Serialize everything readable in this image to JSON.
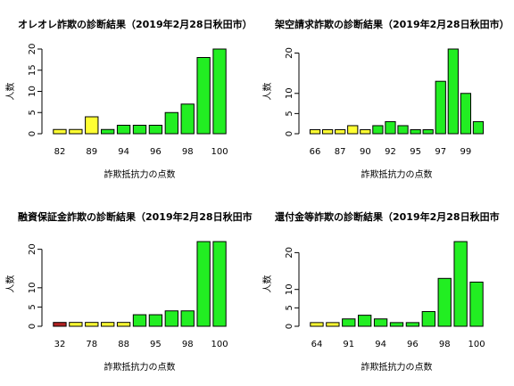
{
  "chart_data": [
    {
      "type": "bar",
      "title": "オレオレ詐欺の診断結果（2019年2月28日秋田市）",
      "x_label": "詐欺抵抗力の点数",
      "y_label": "人数",
      "categories": [
        "82",
        null,
        "89",
        null,
        "94",
        null,
        "96",
        null,
        "98",
        null,
        "100"
      ],
      "values": [
        1,
        1,
        4,
        1,
        2,
        2,
        2,
        5,
        7,
        18,
        20
      ],
      "colors": [
        "#ffff33",
        "#ffff33",
        "#ffff33",
        "#22ee22",
        "#22ee22",
        "#22ee22",
        "#22ee22",
        "#22ee22",
        "#22ee22",
        "#22ee22",
        "#22ee22"
      ],
      "ylim": [
        0,
        20
      ],
      "yticks": [
        0,
        5,
        10,
        15,
        20
      ]
    },
    {
      "type": "bar",
      "title": "架空請求詐欺の診断結果（2019年2月28日秋田市）",
      "x_label": "詐欺抵抗力の点数",
      "y_label": "人数",
      "categories": [
        "66",
        null,
        "87",
        null,
        "90",
        null,
        "92",
        null,
        "95",
        null,
        "97",
        null,
        "99",
        null
      ],
      "values": [
        1,
        1,
        1,
        2,
        1,
        2,
        3,
        2,
        1,
        1,
        13,
        21,
        10,
        3
      ],
      "colors": [
        "#ffff33",
        "#ffff33",
        "#ffff33",
        "#ffff33",
        "#ffff33",
        "#22ee22",
        "#22ee22",
        "#22ee22",
        "#22ee22",
        "#22ee22",
        "#22ee22",
        "#22ee22",
        "#22ee22",
        "#22ee22"
      ],
      "ylim": [
        0,
        21
      ],
      "yticks": [
        0,
        5,
        10,
        20
      ]
    },
    {
      "type": "bar",
      "title": "融資保証金詐欺の診断結果（2019年2月28日秋田市",
      "x_label": "詐欺抵抗力の点数",
      "y_label": "人数",
      "categories": [
        "32",
        null,
        "78",
        null,
        "88",
        null,
        "95",
        null,
        "98",
        null,
        "100"
      ],
      "values": [
        1,
        1,
        1,
        1,
        1,
        3,
        3,
        4,
        4,
        22,
        22
      ],
      "colors": [
        "#b22222",
        "#ffff33",
        "#ffff33",
        "#ffff33",
        "#ffff33",
        "#22ee22",
        "#22ee22",
        "#22ee22",
        "#22ee22",
        "#22ee22",
        "#22ee22"
      ],
      "ylim": [
        0,
        22
      ],
      "yticks": [
        0,
        5,
        10,
        20
      ]
    },
    {
      "type": "bar",
      "title": "還付金等詐欺の診断結果（2019年2月28日秋田市",
      "x_label": "詐欺抵抗力の点数",
      "y_label": "人数",
      "categories": [
        "64",
        null,
        "91",
        null,
        "94",
        null,
        "96",
        null,
        "98",
        null,
        "100"
      ],
      "values": [
        1,
        1,
        2,
        3,
        2,
        1,
        1,
        4,
        13,
        23,
        12
      ],
      "colors": [
        "#ffff33",
        "#ffff33",
        "#22ee22",
        "#22ee22",
        "#22ee22",
        "#22ee22",
        "#22ee22",
        "#22ee22",
        "#22ee22",
        "#22ee22",
        "#22ee22"
      ],
      "ylim": [
        0,
        23
      ],
      "yticks": [
        0,
        5,
        10,
        20
      ]
    }
  ]
}
